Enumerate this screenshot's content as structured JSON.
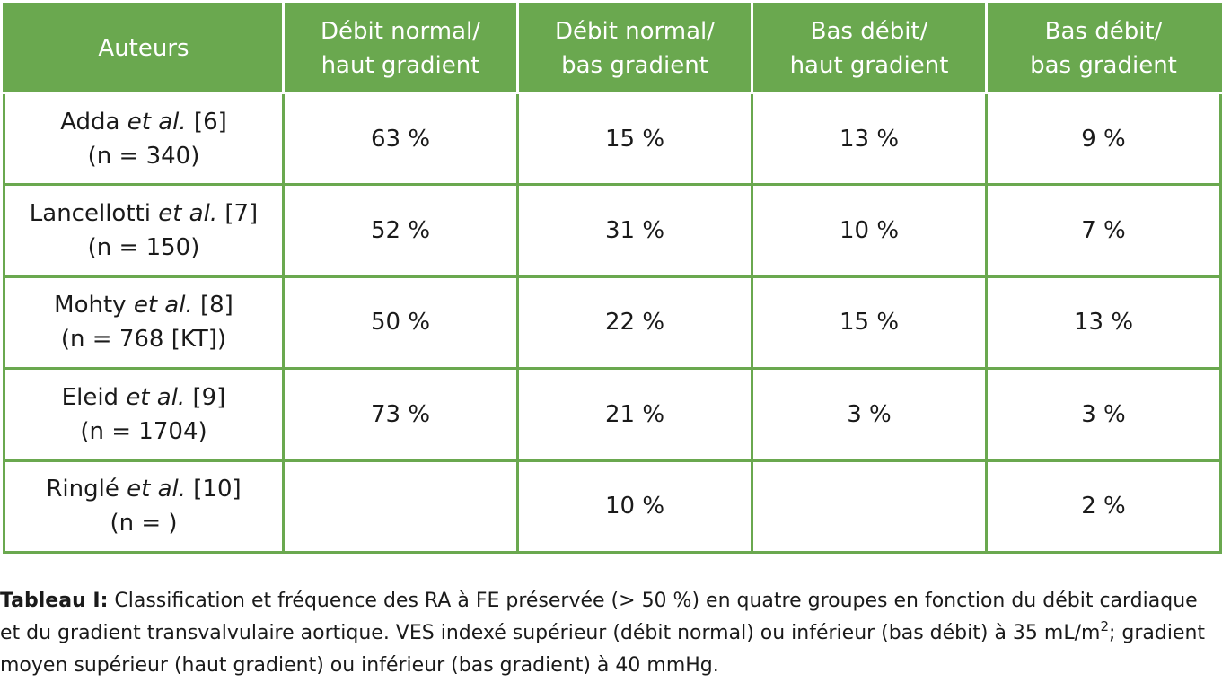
{
  "table": {
    "headers": [
      [
        "Auteurs"
      ],
      [
        "Débit normal/",
        "haut gradient"
      ],
      [
        "Débit normal/",
        "bas gradient"
      ],
      [
        "Bas débit/",
        "haut gradient"
      ],
      [
        "Bas débit/",
        "bas gradient"
      ]
    ],
    "rows": [
      {
        "author": "Adda",
        "etal": "et al.",
        "ref": "[6]",
        "n": "(n = 340)",
        "values": [
          "63 %",
          "15 %",
          "13 %",
          "9 %"
        ]
      },
      {
        "author": "Lancellotti",
        "etal": "et al.",
        "ref": "[7]",
        "n": "(n = 150)",
        "values": [
          "52 %",
          "31 %",
          "10 %",
          "7 %"
        ]
      },
      {
        "author": "Mohty",
        "etal": "et al.",
        "ref": "[8]",
        "n": "(n = 768 [KT])",
        "values": [
          "50 %",
          "22 %",
          "15 %",
          "13 %"
        ]
      },
      {
        "author": "Eleid",
        "etal": "et al.",
        "ref": "[9]",
        "n": "(n = 1704)",
        "values": [
          "73 %",
          "21 %",
          "3 %",
          "3 %"
        ]
      },
      {
        "author": "Ringlé",
        "etal": "et al.",
        "ref": "[10]",
        "n": "(n = )",
        "values": [
          "",
          "10 %",
          "",
          "2 %"
        ]
      }
    ]
  },
  "caption": {
    "label": "Tableau I:",
    "text_1": " Classification et fréquence des RA à FE préservée (> 50 %) en quatre groupes en fonction du débit cardiaque et du gradient transvalvulaire aortique. VES indexé supérieur (débit normal) ou inférieur (bas débit) à 35 mL/m",
    "superscript": "2",
    "text_2": "; gradient moyen supérieur (haut gradient) ou inférieur (bas gradient) à 40 mmHg."
  },
  "colors": {
    "accent": "#6aa84f",
    "header_text": "#ffffff"
  }
}
